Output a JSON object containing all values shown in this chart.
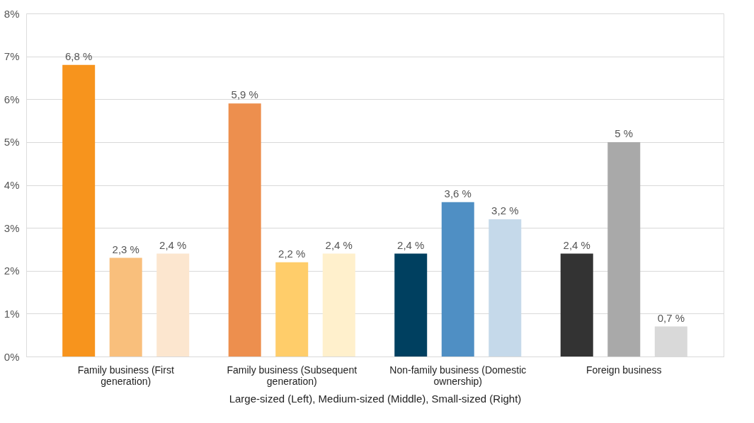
{
  "chart_data": {
    "type": "bar",
    "xlabel": "Large-sized (Left), Medium-sized (Middle), Small-sized (Right)",
    "categories": [
      "Family business (First generation)",
      "Family business (Subsequent generation)",
      "Non-family business (Domestic ownership)",
      "Foreign business"
    ],
    "series": [
      {
        "colors": [
          "#f7941d",
          "#ed8f4e",
          "#004060",
          "#333333"
        ],
        "values": [
          6.8,
          5.9,
          2.4,
          2.4
        ],
        "value_labels": [
          "6,8 %",
          "5,9 %",
          "2,4 %",
          "2,4 %"
        ]
      },
      {
        "colors": [
          "#f9bf7c",
          "#ffcd6a",
          "#4f8fc4",
          "#a9a9a9"
        ],
        "values": [
          2.3,
          2.2,
          3.6,
          5
        ],
        "value_labels": [
          "2,3 %",
          "2,2 %",
          "3,6 %",
          "5 %"
        ]
      },
      {
        "colors": [
          "#fce6cf",
          "#fff0cc",
          "#c5d9ea",
          "#d9d9d9"
        ],
        "values": [
          2.4,
          2.4,
          3.2,
          0.7
        ],
        "value_labels": [
          "2,4 %",
          "2,4 %",
          "3,2 %",
          "0,7 %"
        ]
      }
    ],
    "ylim": [
      0,
      8
    ],
    "yticks": [
      {
        "value": 0,
        "label": "0%"
      },
      {
        "value": 1,
        "label": "1%"
      },
      {
        "value": 2,
        "label": "2%"
      },
      {
        "value": 3,
        "label": "3%"
      },
      {
        "value": 4,
        "label": "4%"
      },
      {
        "value": 5,
        "label": "5%"
      },
      {
        "value": 6,
        "label": "6%"
      },
      {
        "value": 7,
        "label": "7%"
      },
      {
        "value": 8,
        "label": "8%"
      }
    ],
    "grid": "y"
  }
}
